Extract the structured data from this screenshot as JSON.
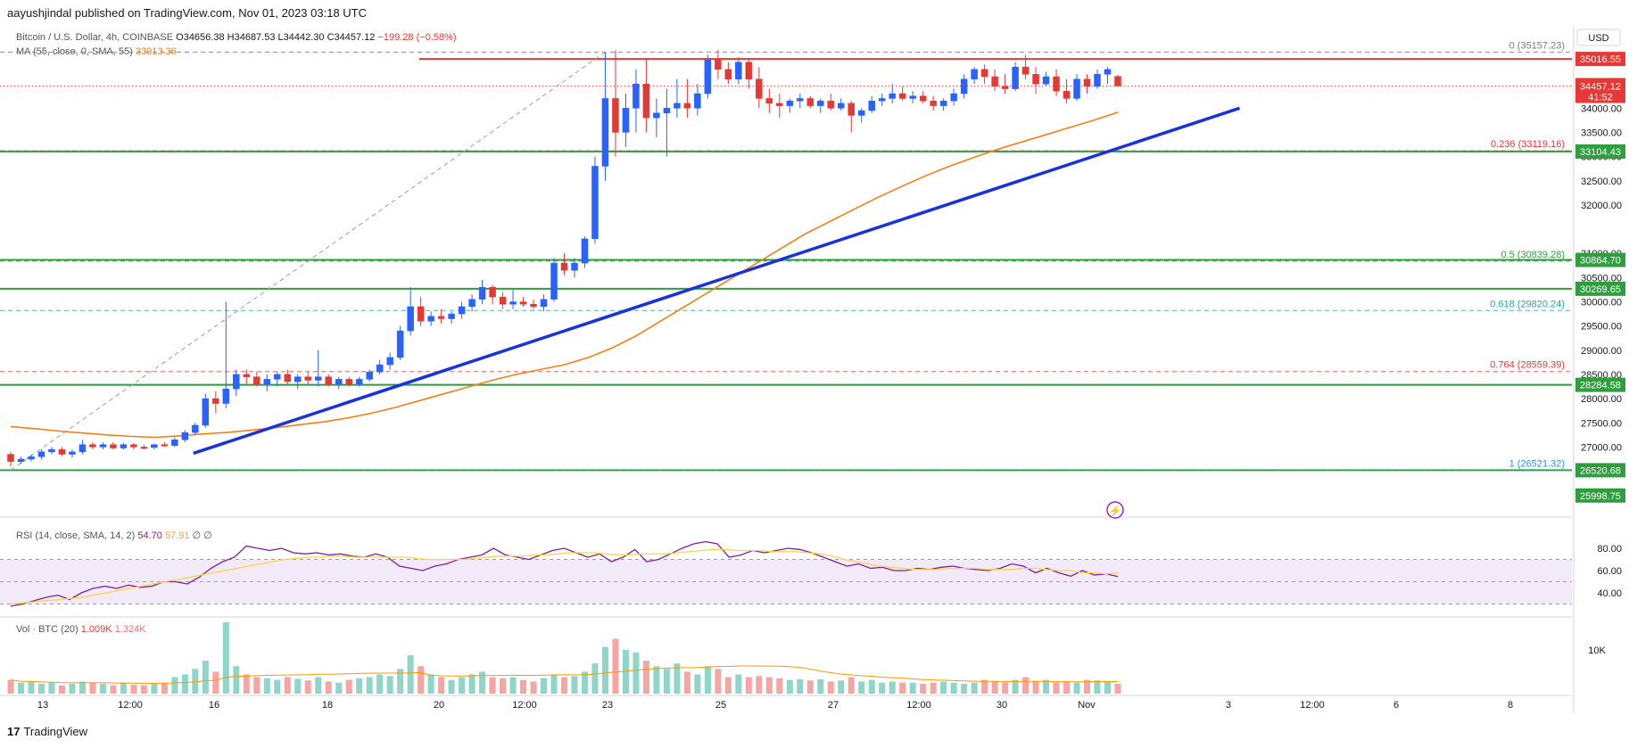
{
  "header": {
    "publisher": "aayushjindal published on TradingView.com, Nov 01, 2023 03:18 UTC"
  },
  "symbol": {
    "name": "Bitcoin / U.S. Dollar, 4h, COINBASE",
    "open": "O34656.38",
    "high": "H34687.53",
    "low": "L34442.30",
    "close": "C34457.12",
    "change": "−199.28 (−0.58%)"
  },
  "ma": {
    "label": "MA (55, close, 0, SMA, 55)",
    "value": "33913.36"
  },
  "rsi": {
    "label": "RSI (14, close, SMA, 14, 2)",
    "value": "54.70",
    "sma": "57.91",
    "extra": "∅ ∅"
  },
  "volume": {
    "label": "Vol · BTC (20)",
    "value": "1.009K",
    "ma": "1.324K"
  },
  "brand": {
    "logo": "17",
    "name": "TradingView"
  },
  "currency": "USD",
  "colors": {
    "up": "#26a69a",
    "up_fill": "#2962ff",
    "down": "#e53935",
    "ma": "#f57f17",
    "trend": "#1a32d9",
    "support": "#2e9e3e",
    "rsi": "#7b1fa2",
    "rsi_sma": "#f9d648",
    "rsi_band": "#ede0f7"
  },
  "chart_data": {
    "type": "line",
    "title": "Bitcoin / U.S. Dollar, 4h, COINBASE",
    "ylim": [
      25700,
      35350
    ],
    "price_axis_ticks": [
      27000,
      27500,
      28000,
      28500,
      29000,
      29500,
      30000,
      30500,
      31000,
      32000,
      32500,
      33000,
      33500,
      34000
    ],
    "x_ticks": [
      "13",
      "12:00",
      "16",
      "18",
      "20",
      "12:00",
      "23",
      "25",
      "27",
      "12:00",
      "30",
      "Nov",
      "3",
      "12:00",
      "6",
      "8"
    ],
    "horizontal_levels": [
      {
        "name": "resistance",
        "value": 35016.55,
        "label": "35016.55",
        "color": "#e53935"
      },
      {
        "name": "support",
        "value": 33104.43,
        "label": "33104.43",
        "color": "#2e9e3e"
      },
      {
        "name": "support",
        "value": 30864.7,
        "label": "30864.70",
        "color": "#2e9e3e"
      },
      {
        "name": "support",
        "value": 30269.65,
        "label": "30269.65",
        "color": "#2e9e3e"
      },
      {
        "name": "support",
        "value": 28284.58,
        "label": "28284.58",
        "color": "#2e9e3e"
      },
      {
        "name": "support",
        "value": 26520.68,
        "label": "26520.68",
        "color": "#2e9e3e"
      }
    ],
    "fib_levels": [
      {
        "ratio": "0",
        "value": 35157.23,
        "label": "0 (35157.23)",
        "color": "#787b86"
      },
      {
        "ratio": "0.236",
        "value": 33119.16,
        "label": "0.236 (33119.16)",
        "color": "#e53935"
      },
      {
        "ratio": "0.5",
        "value": 30839.28,
        "label": "0.5 (30839.28)",
        "color": "#2e9e3e"
      },
      {
        "ratio": "0.618",
        "value": 29820.24,
        "label": "0.618 (29820.24)",
        "color": "#26a69a"
      },
      {
        "ratio": "0.764",
        "value": 28559.39,
        "label": "0.764 (28559.39)",
        "color": "#e53935"
      },
      {
        "ratio": "1",
        "value": 26521.32,
        "label": "1 (26521.32)",
        "color": "#2196f3"
      }
    ],
    "last_price": {
      "value": 34457.12,
      "label": "34457.12",
      "countdown": "41:52"
    },
    "extra_price_label": "25998.75",
    "candles": [
      [
        26850,
        26900,
        26600,
        26700
      ],
      [
        26700,
        26800,
        26650,
        26750
      ],
      [
        26750,
        26850,
        26700,
        26800
      ],
      [
        26800,
        26950,
        26750,
        26900
      ],
      [
        26900,
        27000,
        26850,
        26950
      ],
      [
        26950,
        27000,
        26800,
        26850
      ],
      [
        26850,
        26950,
        26780,
        26900
      ],
      [
        26900,
        27150,
        26850,
        27050
      ],
      [
        27050,
        27100,
        26950,
        27000
      ],
      [
        27000,
        27100,
        26950,
        27050
      ],
      [
        27050,
        27100,
        26950,
        26980
      ],
      [
        26980,
        27080,
        26950,
        27050
      ],
      [
        27050,
        27080,
        26950,
        27000
      ],
      [
        27000,
        27050,
        26950,
        26990
      ],
      [
        26990,
        27070,
        26950,
        27050
      ],
      [
        27050,
        27100,
        27000,
        27030
      ],
      [
        27030,
        27200,
        27000,
        27150
      ],
      [
        27150,
        27350,
        27100,
        27300
      ],
      [
        27300,
        27500,
        27250,
        27450
      ],
      [
        27450,
        28100,
        27400,
        28000
      ],
      [
        28000,
        28150,
        27700,
        27900
      ],
      [
        27900,
        30000,
        27800,
        28200
      ],
      [
        28200,
        28600,
        28050,
        28500
      ],
      [
        28500,
        28600,
        28300,
        28450
      ],
      [
        28450,
        28550,
        28250,
        28300
      ],
      [
        28300,
        28500,
        28150,
        28400
      ],
      [
        28400,
        28550,
        28250,
        28500
      ],
      [
        28500,
        28600,
        28300,
        28350
      ],
      [
        28350,
        28500,
        28200,
        28450
      ],
      [
        28450,
        28550,
        28300,
        28380
      ],
      [
        28380,
        29000,
        28250,
        28450
      ],
      [
        28450,
        28500,
        28250,
        28300
      ],
      [
        28300,
        28450,
        28200,
        28400
      ],
      [
        28400,
        28450,
        28250,
        28300
      ],
      [
        28300,
        28450,
        28250,
        28400
      ],
      [
        28400,
        28600,
        28350,
        28550
      ],
      [
        28550,
        28800,
        28500,
        28700
      ],
      [
        28700,
        28950,
        28600,
        28850
      ],
      [
        28850,
        29500,
        28800,
        29400
      ],
      [
        29400,
        30300,
        29300,
        29900
      ],
      [
        29900,
        30100,
        29500,
        29600
      ],
      [
        29600,
        29800,
        29500,
        29700
      ],
      [
        29700,
        29850,
        29550,
        29650
      ],
      [
        29650,
        29800,
        29550,
        29750
      ],
      [
        29750,
        30000,
        29650,
        29900
      ],
      [
        29900,
        30150,
        29800,
        30050
      ],
      [
        30050,
        30450,
        29950,
        30300
      ],
      [
        30300,
        30350,
        29950,
        30100
      ],
      [
        30100,
        30200,
        29850,
        29950
      ],
      [
        29950,
        30250,
        29850,
        30000
      ],
      [
        30000,
        30100,
        29900,
        29950
      ],
      [
        29950,
        30050,
        29850,
        29900
      ],
      [
        29900,
        30150,
        29800,
        30050
      ],
      [
        30050,
        30900,
        30000,
        30800
      ],
      [
        30800,
        31000,
        30550,
        30650
      ],
      [
        30650,
        30900,
        30500,
        30800
      ],
      [
        30800,
        31350,
        30700,
        31300
      ],
      [
        31300,
        33000,
        31200,
        32800
      ],
      [
        32800,
        35150,
        32500,
        34200
      ],
      [
        34200,
        35200,
        33000,
        33500
      ],
      [
        33500,
        34300,
        33200,
        34000
      ],
      [
        34000,
        34800,
        33500,
        34500
      ],
      [
        34500,
        35000,
        33500,
        33800
      ],
      [
        33800,
        34200,
        33400,
        33900
      ],
      [
        33900,
        34400,
        33000,
        34000
      ],
      [
        34000,
        34600,
        33800,
        34100
      ],
      [
        34100,
        34600,
        33800,
        34000
      ],
      [
        34000,
        34500,
        33850,
        34300
      ],
      [
        34300,
        35100,
        34200,
        35000
      ],
      [
        35000,
        35200,
        34600,
        34800
      ],
      [
        34800,
        34950,
        34500,
        34600
      ],
      [
        34600,
        35050,
        34500,
        34950
      ],
      [
        34950,
        35000,
        34400,
        34600
      ],
      [
        34600,
        34850,
        34000,
        34200
      ],
      [
        34200,
        34400,
        33900,
        34100
      ],
      [
        34100,
        34300,
        33800,
        34050
      ],
      [
        34050,
        34200,
        33900,
        34150
      ],
      [
        34150,
        34300,
        34000,
        34200
      ],
      [
        34200,
        34250,
        34000,
        34050
      ],
      [
        34050,
        34200,
        33900,
        34150
      ],
      [
        34150,
        34300,
        33950,
        34000
      ],
      [
        34000,
        34200,
        33950,
        34100
      ],
      [
        34100,
        34150,
        33500,
        33850
      ],
      [
        33850,
        34000,
        33700,
        33950
      ],
      [
        33950,
        34250,
        33900,
        34150
      ],
      [
        34150,
        34300,
        34050,
        34200
      ],
      [
        34200,
        34500,
        34100,
        34300
      ],
      [
        34300,
        34450,
        34150,
        34200
      ],
      [
        34200,
        34350,
        34100,
        34250
      ],
      [
        34250,
        34350,
        34100,
        34150
      ],
      [
        34150,
        34250,
        33950,
        34050
      ],
      [
        34050,
        34200,
        33950,
        34150
      ],
      [
        34150,
        34400,
        34050,
        34300
      ],
      [
        34300,
        34700,
        34200,
        34600
      ],
      [
        34600,
        34850,
        34500,
        34800
      ],
      [
        34800,
        34900,
        34500,
        34650
      ],
      [
        34650,
        34800,
        34350,
        34450
      ],
      [
        34450,
        34700,
        34300,
        34400
      ],
      [
        34400,
        34950,
        34350,
        34850
      ],
      [
        34850,
        35100,
        34600,
        34700
      ],
      [
        34700,
        34850,
        34300,
        34500
      ],
      [
        34500,
        34750,
        34450,
        34650
      ],
      [
        34650,
        34800,
        34250,
        34350
      ],
      [
        34350,
        34600,
        34100,
        34200
      ],
      [
        34200,
        34700,
        34150,
        34600
      ],
      [
        34600,
        34700,
        34300,
        34450
      ],
      [
        34450,
        34800,
        34400,
        34700
      ],
      [
        34700,
        34850,
        34500,
        34800
      ],
      [
        34656.38,
        34687.53,
        34442.3,
        34457.12
      ]
    ],
    "ma55": [
      27420,
      27380,
      27330,
      27290,
      27250,
      27220,
      27200,
      27230,
      27270,
      27300,
      27350,
      27400,
      27460,
      27520,
      27600,
      27700,
      27820,
      27960,
      28100,
      28240,
      28380,
      28500,
      28600,
      28700,
      28850,
      29050,
      29300,
      29600,
      29900,
      30200,
      30500,
      30800,
      31100,
      31400,
      31650,
      31900,
      32150,
      32380,
      32600,
      32800,
      32980,
      33150,
      33300,
      33450,
      33600,
      33750,
      33913.36
    ],
    "ma55_x_from": 0,
    "ma55_x_to": 1,
    "trendline": {
      "from": [
        0.165,
        26870
      ],
      "to": [
        1.11,
        34000
      ]
    },
    "rsi_series": [
      28,
      30,
      33,
      36,
      38,
      34,
      40,
      44,
      46,
      44,
      47,
      45,
      46,
      50,
      50,
      48,
      54,
      62,
      68,
      72,
      82,
      80,
      78,
      80,
      76,
      75,
      76,
      74,
      75,
      73,
      72,
      75,
      72,
      64,
      62,
      60,
      64,
      66,
      70,
      72,
      74,
      80,
      74,
      72,
      70,
      74,
      78,
      80,
      76,
      72,
      75,
      68,
      72,
      79,
      68,
      70,
      75,
      80,
      84,
      86,
      84,
      72,
      74,
      78,
      76,
      78,
      80,
      79,
      76,
      72,
      68,
      64,
      66,
      62,
      63,
      60,
      60,
      62,
      61,
      63,
      64,
      62,
      61,
      60,
      62,
      66,
      64,
      58,
      62,
      58,
      55,
      60,
      56,
      57,
      54.7
    ],
    "rsi_sma_series": [
      30,
      31,
      32,
      33,
      34,
      35,
      36,
      38,
      40,
      42,
      44,
      46,
      48,
      50,
      52,
      54,
      56,
      58,
      60,
      62,
      64,
      66,
      68,
      70,
      71,
      72,
      72,
      73,
      73,
      72,
      72,
      72,
      72,
      72,
      71,
      70,
      70,
      70,
      70,
      71,
      72,
      73,
      73,
      73,
      74,
      74,
      75,
      76,
      76,
      76,
      75,
      74,
      74,
      75,
      75,
      75,
      76,
      77,
      78,
      79,
      79,
      78,
      78,
      78,
      77,
      77,
      77,
      76,
      75,
      73,
      70,
      68,
      66,
      64,
      63,
      62,
      61,
      61,
      61,
      62,
      62,
      62,
      61,
      61,
      61,
      62,
      62,
      61,
      60,
      60,
      58,
      58,
      57,
      57.91
    ],
    "rsi_ticks": [
      40,
      60,
      80
    ],
    "volume_series": [
      0.25,
      0.2,
      0.22,
      0.18,
      0.2,
      0.15,
      0.18,
      0.22,
      0.2,
      0.18,
      0.15,
      0.2,
      0.16,
      0.15,
      0.18,
      0.2,
      0.3,
      0.35,
      0.45,
      0.6,
      0.4,
      1.3,
      0.5,
      0.35,
      0.3,
      0.28,
      0.25,
      0.3,
      0.27,
      0.24,
      0.3,
      0.22,
      0.2,
      0.25,
      0.28,
      0.3,
      0.35,
      0.32,
      0.45,
      0.7,
      0.5,
      0.35,
      0.3,
      0.25,
      0.3,
      0.35,
      0.4,
      0.3,
      0.28,
      0.3,
      0.25,
      0.22,
      0.28,
      0.35,
      0.3,
      0.32,
      0.4,
      0.55,
      0.85,
      1.0,
      0.8,
      0.75,
      0.6,
      0.5,
      0.45,
      0.55,
      0.4,
      0.35,
      0.5,
      0.45,
      0.3,
      0.35,
      0.3,
      0.32,
      0.3,
      0.28,
      0.25,
      0.26,
      0.24,
      0.26,
      0.22,
      0.24,
      0.3,
      0.22,
      0.25,
      0.2,
      0.22,
      0.2,
      0.2,
      0.18,
      0.2,
      0.22,
      0.2,
      0.18,
      0.2,
      0.25,
      0.22,
      0.2,
      0.25,
      0.3,
      0.22,
      0.25,
      0.2,
      0.22,
      0.2,
      0.25,
      0.24,
      0.22,
      0.18
    ],
    "volume_tick": "10K"
  }
}
